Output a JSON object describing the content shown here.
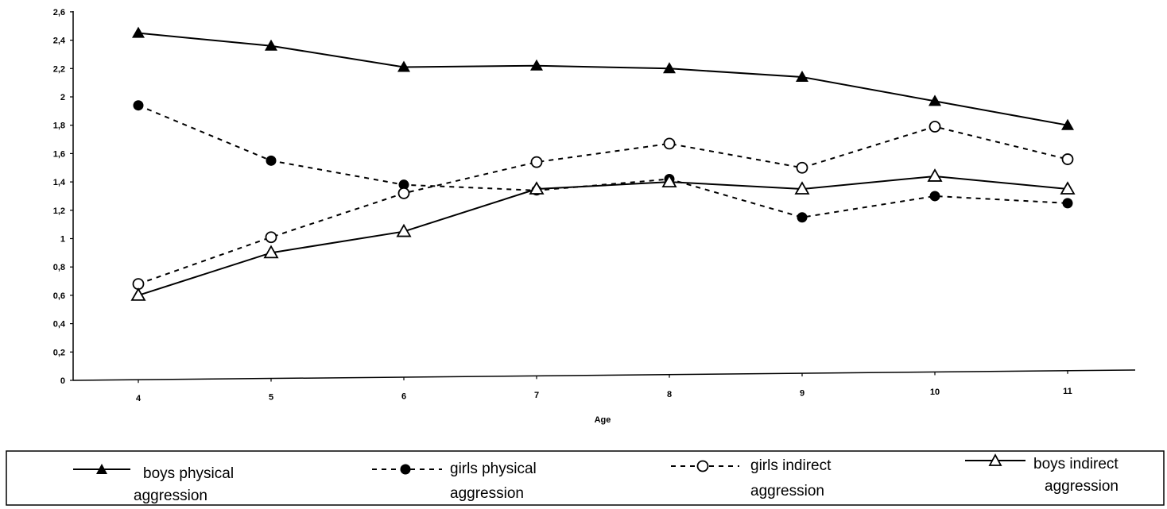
{
  "chart_data": {
    "type": "line",
    "title": "",
    "xlabel": "Age",
    "ylabel": "",
    "x": [
      4,
      5,
      6,
      7,
      8,
      9,
      10,
      11
    ],
    "x_tick_labels": [
      "4",
      "5",
      "6",
      "7",
      "8",
      "9",
      "10",
      "11"
    ],
    "y_tick_labels": [
      "0",
      "0,2",
      "0,4",
      "0,6",
      "0,8",
      "1",
      "1,2",
      "1,4",
      "1,6",
      "1,8",
      "2",
      "2,2",
      "2,4",
      "2,6"
    ],
    "ylim": [
      0,
      2.6
    ],
    "grid": false,
    "legend_position": "bottom",
    "series": [
      {
        "name": "boys physical aggression",
        "line": "solid",
        "marker": "filled-triangle",
        "values": [
          2.45,
          2.36,
          2.21,
          2.22,
          2.2,
          2.14,
          1.97,
          1.8
        ]
      },
      {
        "name": "girls physical aggression",
        "line": "dashed",
        "marker": "filled-circle",
        "values": [
          1.94,
          1.55,
          1.38,
          1.34,
          1.42,
          1.15,
          1.3,
          1.25
        ]
      },
      {
        "name": "girls indirect aggression",
        "line": "dashed",
        "marker": "open-circle",
        "values": [
          0.68,
          1.01,
          1.32,
          1.54,
          1.67,
          1.5,
          1.79,
          1.56
        ]
      },
      {
        "name": "boys indirect aggression",
        "line": "solid",
        "marker": "open-triangle",
        "values": [
          0.6,
          0.9,
          1.05,
          1.35,
          1.4,
          1.35,
          1.44,
          1.35
        ]
      }
    ]
  },
  "legend": {
    "items": [
      {
        "line1": "boys physical",
        "line2": "aggression"
      },
      {
        "line1": "girls physical",
        "line2": "aggression"
      },
      {
        "line1": "girls indirect",
        "line2": "aggression"
      },
      {
        "line1": "boys indirect",
        "line2": "aggression"
      }
    ]
  }
}
